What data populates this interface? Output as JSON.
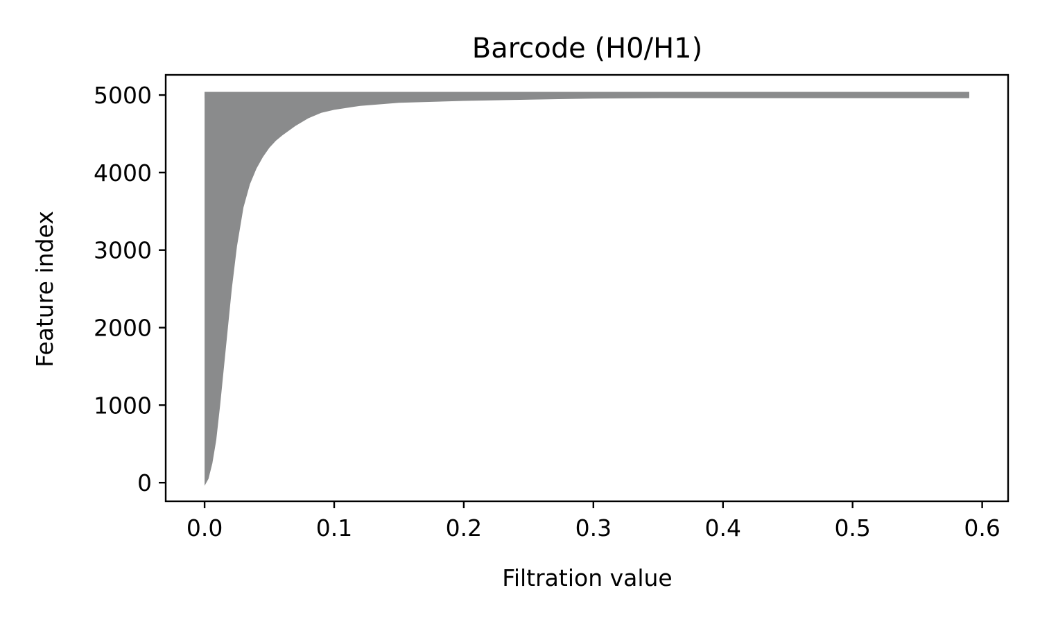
{
  "chart_data": {
    "type": "area",
    "title": "Barcode (H0/H1)",
    "xlabel": "Filtration value",
    "ylabel": "Feature index",
    "xlim": [
      -0.03,
      0.62
    ],
    "ylim": [
      -240,
      5260
    ],
    "xticks": [
      0.0,
      0.1,
      0.2,
      0.3,
      0.4,
      0.5,
      0.6
    ],
    "xtick_labels": [
      "0.0",
      "0.1",
      "0.2",
      "0.3",
      "0.4",
      "0.5",
      "0.6"
    ],
    "yticks": [
      0,
      1000,
      2000,
      3000,
      4000,
      5000
    ],
    "ytick_labels": [
      "0",
      "1000",
      "2000",
      "3000",
      "4000",
      "5000"
    ],
    "grid": false,
    "legend": "none",
    "fill_color": "#8a8b8c",
    "series": [
      {
        "description": "Bars: each feature index spans from birth to death along the filtration axis; shown as filled region between birth and death curves",
        "birth_x": [
          0.0,
          0.0
        ],
        "birth_y": [
          -40,
          5040
        ],
        "death_curve": {
          "x": [
            0.0,
            0.003,
            0.006,
            0.009,
            0.012,
            0.015,
            0.018,
            0.021,
            0.025,
            0.03,
            0.035,
            0.04,
            0.045,
            0.05,
            0.055,
            0.06,
            0.07,
            0.08,
            0.09,
            0.1,
            0.12,
            0.15,
            0.2,
            0.3,
            0.4,
            0.5,
            0.59
          ],
          "y": [
            -40,
            50,
            250,
            550,
            1000,
            1500,
            2000,
            2500,
            3050,
            3550,
            3850,
            4050,
            4200,
            4320,
            4410,
            4480,
            4600,
            4700,
            4770,
            4810,
            4860,
            4900,
            4925,
            4955,
            4965,
            4975,
            4985
          ]
        },
        "top_bar": {
          "y_range": [
            4960,
            5040
          ],
          "x_range": [
            0.0,
            0.59
          ]
        }
      }
    ]
  }
}
